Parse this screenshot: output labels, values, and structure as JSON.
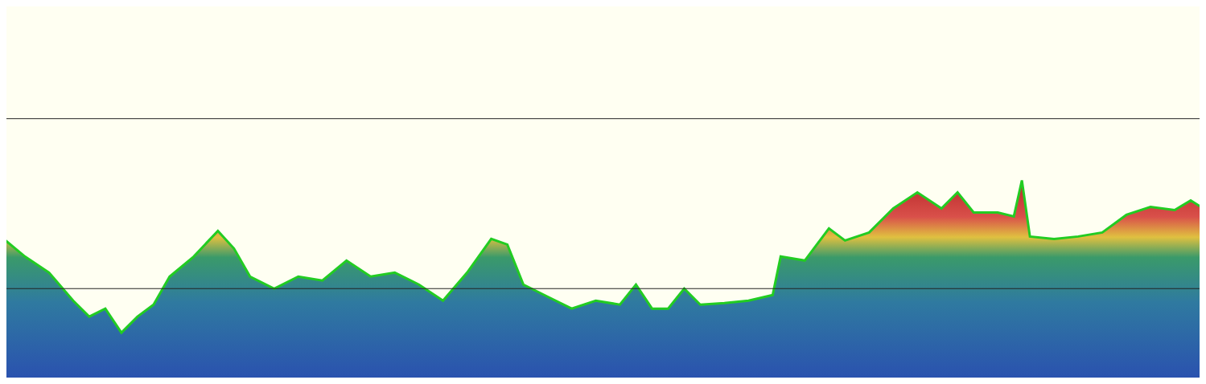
{
  "chart_data": {
    "type": "area",
    "x": [
      0,
      30,
      60,
      90,
      110,
      130,
      150,
      170,
      190,
      210,
      240,
      270,
      290,
      310,
      340,
      370,
      400,
      430,
      460,
      490,
      520,
      550,
      580,
      610,
      630,
      650,
      680,
      710,
      740,
      770,
      790,
      810,
      830,
      850,
      870,
      900,
      930,
      960,
      970,
      1000,
      1030,
      1050,
      1080,
      1110,
      1140,
      1170,
      1190,
      1210,
      1240,
      1260,
      1270,
      1280,
      1310,
      1340,
      1370,
      1400,
      1430,
      1460,
      1480,
      1499
    ],
    "values": [
      183,
      158,
      138,
      103,
      83,
      93,
      63,
      83,
      98,
      133,
      158,
      190,
      168,
      133,
      118,
      133,
      128,
      153,
      133,
      138,
      123,
      103,
      138,
      180,
      173,
      123,
      108,
      93,
      103,
      98,
      123,
      93,
      93,
      118,
      98,
      100,
      103,
      110,
      158,
      153,
      193,
      178,
      188,
      218,
      238,
      218,
      238,
      213,
      213,
      208,
      253,
      183,
      180,
      183,
      188,
      210,
      220,
      216,
      228,
      216
    ],
    "color": "#22cc22",
    "reference_lines": [
      330,
      118
    ],
    "xlim": [
      0,
      1499
    ],
    "ylim": [
      0,
      478
    ],
    "tick_labels": false
  }
}
